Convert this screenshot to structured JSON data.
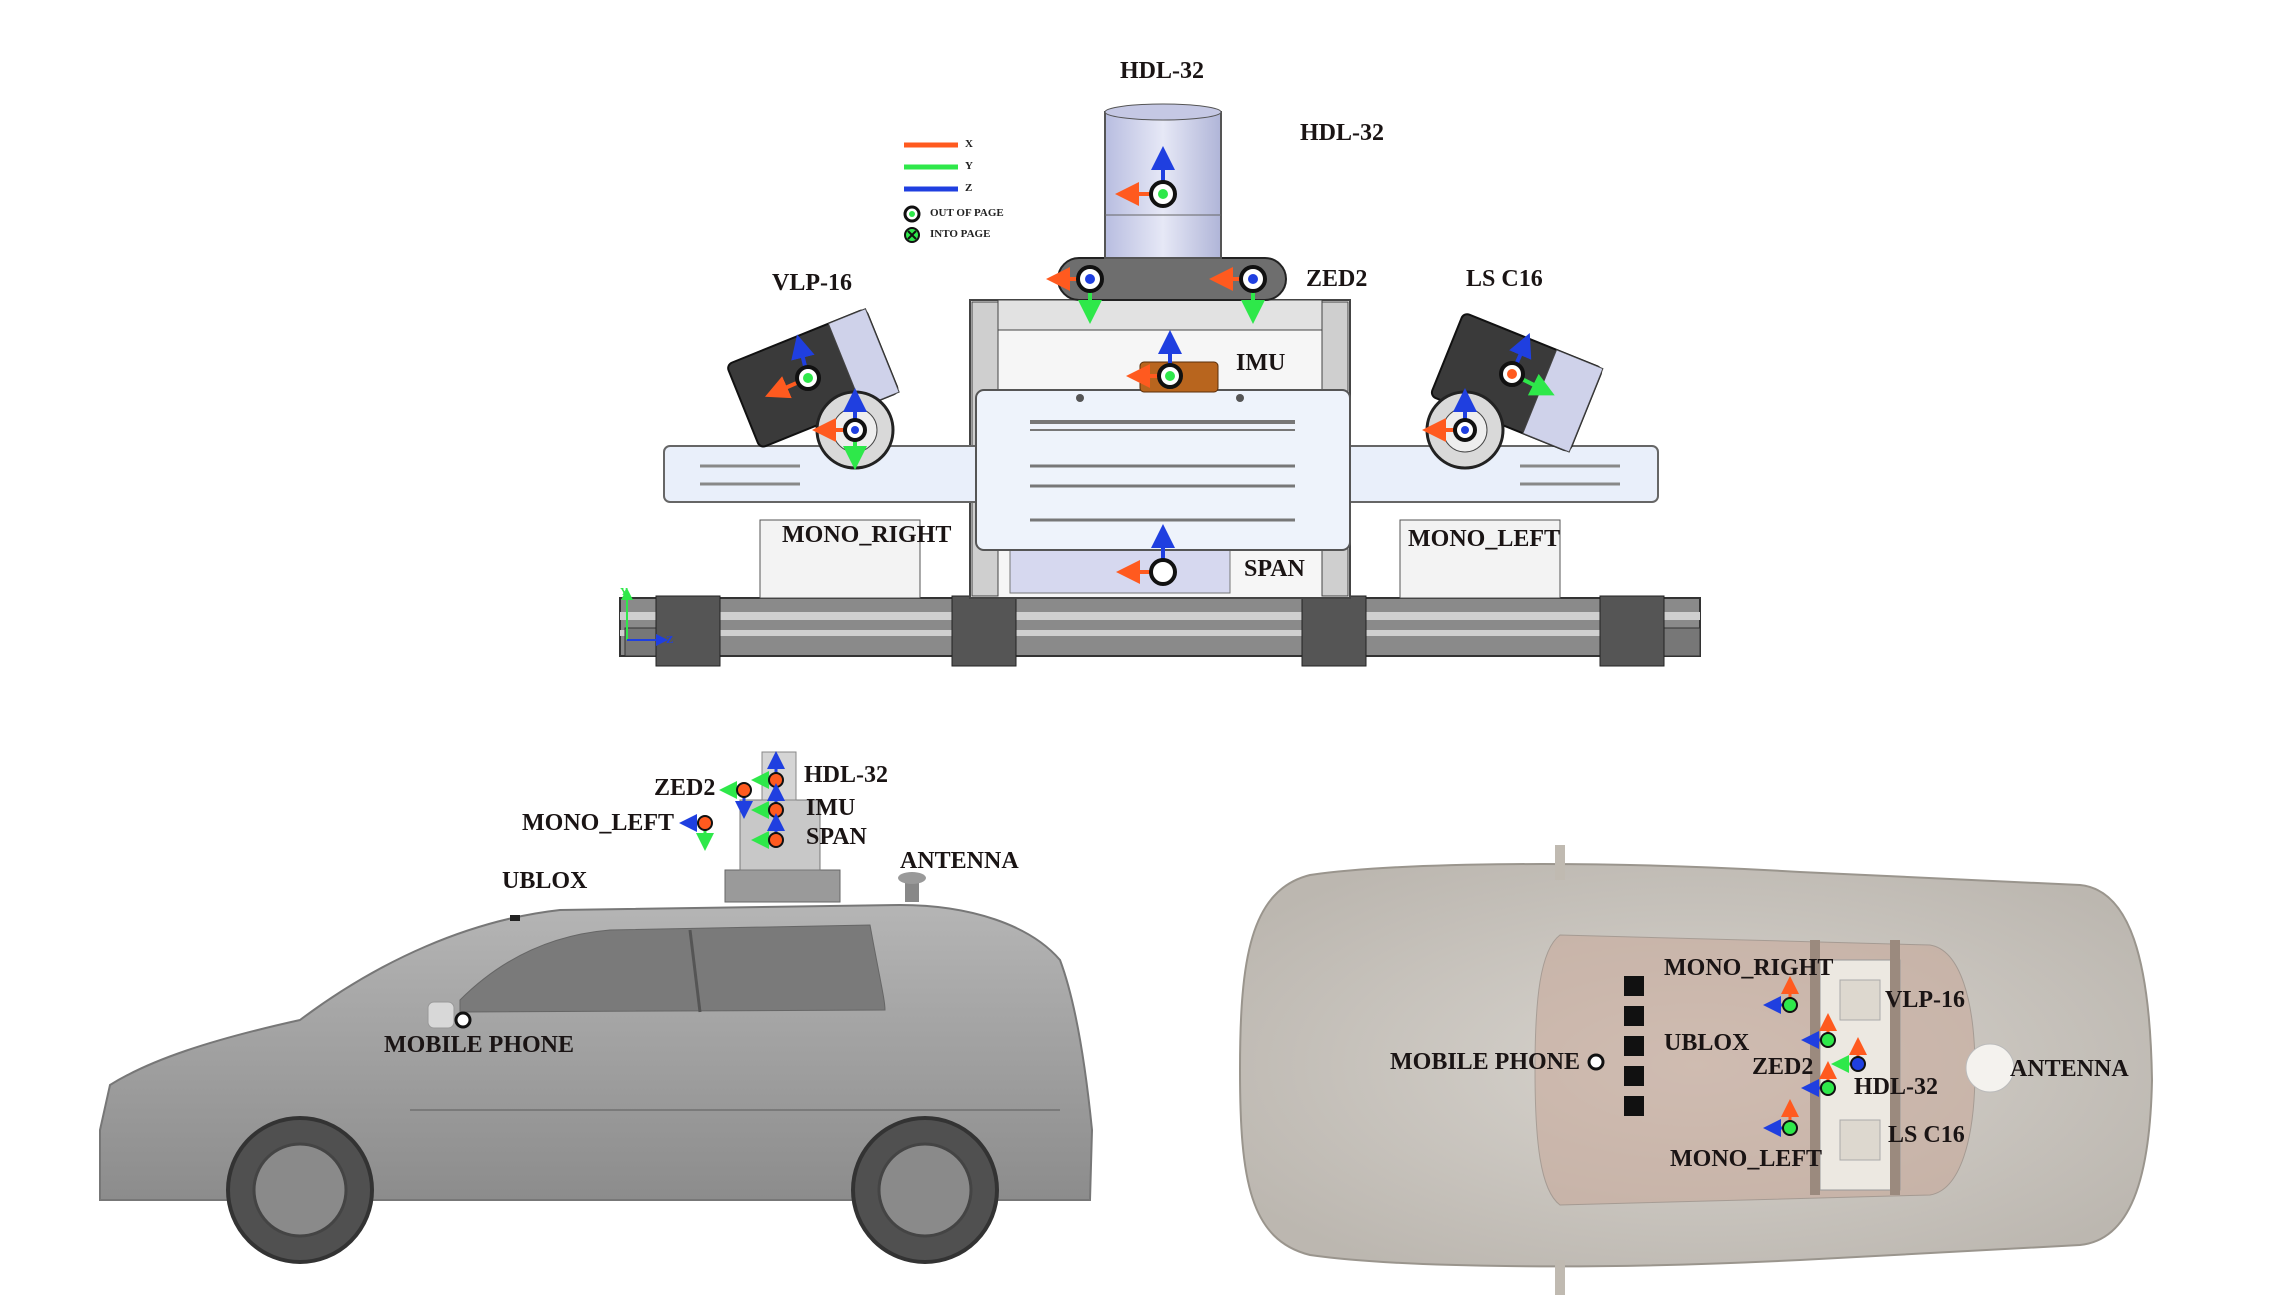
{
  "legend": {
    "x": "X",
    "y": "Y",
    "z": "Z",
    "out_of_page": "OUT OF PAGE",
    "into_page": "INTO PAGE"
  },
  "colors": {
    "x_axis": "#ff5a1f",
    "y_axis": "#2ee84a",
    "z_axis": "#1f3fe0"
  },
  "front_view": {
    "hdl32_top": "HDL-32",
    "hdl32_side": "HDL-32",
    "zed2": "ZED2",
    "vlp16": "VLP-16",
    "lsc16": "LS C16",
    "imu": "IMU",
    "mono_right": "MONO_RIGHT",
    "mono_left": "MONO_LEFT",
    "span": "SPAN",
    "axis_y": "Y",
    "axis_z": "Z"
  },
  "side_view": {
    "zed2": "ZED2",
    "hdl32": "HDL-32",
    "imu": "IMU",
    "span": "SPAN",
    "mono_left": "MONO_LEFT",
    "ublox": "UBLOX",
    "antenna": "ANTENNA",
    "mobile_phone": "MOBILE PHONE"
  },
  "top_view": {
    "mono_right": "MONO_RIGHT",
    "vlp16": "VLP-16",
    "ublox": "UBLOX",
    "zed2": "ZED2",
    "hdl32": "HDL-32",
    "antenna": "ANTENNA",
    "mobile_phone": "MOBILE PHONE",
    "lsc16": "LS C16",
    "mono_left": "MONO_LEFT"
  }
}
